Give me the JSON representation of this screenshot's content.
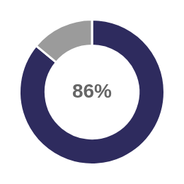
{
  "chart_data": {
    "type": "doughnut",
    "values": [
      86,
      14
    ],
    "colors": [
      "#2e2b5e",
      "#9b9b9b"
    ],
    "annotations": [
      {
        "text": "86%"
      }
    ]
  }
}
